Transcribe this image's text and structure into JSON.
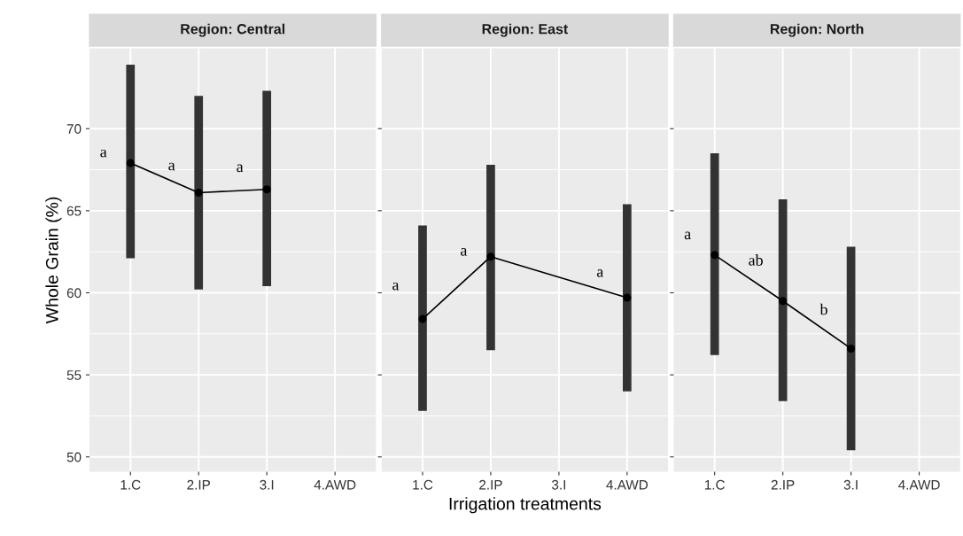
{
  "chart_data": [
    {
      "type": "line",
      "title": "Region: Central",
      "ylabel": "Whole Grain (%)",
      "categories": [
        "1.C",
        "2.IP",
        "3.I",
        "4.AWD"
      ],
      "series": [
        {
          "color": "#000000",
          "values": [
            67.9,
            66.1,
            66.3,
            null
          ],
          "errors": [
            [
              62.1,
              73.9
            ],
            [
              60.2,
              72.0
            ],
            [
              60.4,
              72.3
            ],
            null
          ]
        }
      ],
      "ylim": [
        49.1,
        74.9
      ],
      "yticks": [
        50,
        55,
        60,
        65,
        70
      ],
      "grid": true,
      "marker": "circle",
      "line_style": "solid",
      "annotations": [
        {
          "text": "a",
          "x": "1.C",
          "y": 68.5
        },
        {
          "text": "a",
          "x": "2.IP",
          "y": 67.7
        },
        {
          "text": "a",
          "x": "3.I",
          "y": 67.6
        }
      ]
    },
    {
      "type": "line",
      "title": "Region: East",
      "xlabel": "Irrigation treatments",
      "categories": [
        "1.C",
        "2.IP",
        "3.I",
        "4.AWD"
      ],
      "series": [
        {
          "color": "#000000",
          "values": [
            58.4,
            62.2,
            null,
            59.7
          ],
          "errors": [
            [
              52.8,
              64.1
            ],
            [
              56.5,
              67.8
            ],
            null,
            [
              54.0,
              65.4
            ]
          ]
        }
      ],
      "ylim": [
        49.1,
        74.9
      ],
      "yticks": [
        50,
        55,
        60,
        65,
        70
      ],
      "grid": true,
      "marker": "circle",
      "line_style": "solid",
      "tick_labels": "x",
      "annotations": [
        {
          "text": "a",
          "x": "1.C",
          "y": 60.4
        },
        {
          "text": "a",
          "x": "2.IP",
          "y": 62.5
        },
        {
          "text": "a",
          "x": "4.AWD",
          "y": 61.2
        }
      ]
    },
    {
      "type": "line",
      "title": "Region: North",
      "categories": [
        "1.C",
        "2.IP",
        "3.I",
        "4.AWD"
      ],
      "series": [
        {
          "color": "#000000",
          "values": [
            62.3,
            59.5,
            56.6,
            null
          ],
          "errors": [
            [
              56.2,
              68.5
            ],
            [
              53.4,
              65.7
            ],
            [
              50.4,
              62.8
            ],
            null
          ]
        }
      ],
      "ylim": [
        49.1,
        74.9
      ],
      "yticks": [
        50,
        55,
        60,
        65,
        70
      ],
      "grid": true,
      "marker": "circle",
      "line_style": "solid",
      "tick_labels": "x",
      "annotations": [
        {
          "text": "a",
          "x": "1.C",
          "y": 63.5
        },
        {
          "text": "ab",
          "x": "2.IP",
          "y": 61.9
        },
        {
          "text": "b",
          "x": "3.I",
          "y": 58.9
        }
      ]
    }
  ]
}
